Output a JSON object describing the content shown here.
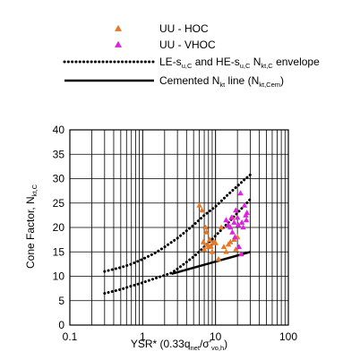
{
  "chart_data": {
    "type": "scatter",
    "xscale": "log",
    "xlim": [
      0.1,
      100
    ],
    "ylim": [
      0,
      40
    ],
    "grid": true,
    "legend_placement": "top",
    "xlabel": {
      "pre": "YSR* (0.33q",
      "sub1": "net",
      "mid": "/σ'",
      "sub2": "vo,h",
      "post": ")"
    },
    "ylabel": {
      "pre": "Cone Factor, N",
      "sub": "kt,C"
    },
    "x_ticks": [
      {
        "value": 0.1,
        "label": "0.1"
      },
      {
        "value": 1,
        "label": "1"
      },
      {
        "value": 10,
        "label": "10"
      },
      {
        "value": 100,
        "label": "100"
      }
    ],
    "y_ticks": [
      {
        "value": 0,
        "label": "0"
      },
      {
        "value": 5,
        "label": "5"
      },
      {
        "value": 10,
        "label": "10"
      },
      {
        "value": 15,
        "label": "15"
      },
      {
        "value": 20,
        "label": "20"
      },
      {
        "value": 25,
        "label": "25"
      },
      {
        "value": 30,
        "label": "30"
      },
      {
        "value": 35,
        "label": "35"
      },
      {
        "value": 40,
        "label": "40"
      }
    ],
    "legend": [
      {
        "label": "UU - HOC",
        "color": "#e87722",
        "marker": "triangle"
      },
      {
        "label": "UU - VHOC",
        "color": "#e020e0",
        "marker": "triangle"
      },
      {
        "pre": "LE-s",
        "s1": "u,C",
        "mid": " and HE-s",
        "s2": "u,C",
        "mid2": " N",
        "s3": "kt,C",
        "post": " envelope",
        "style": "dotted"
      },
      {
        "pre": "Cemented N",
        "s1": "kt",
        "mid": " line (N",
        "s2": "kt,Cem",
        "post": ")",
        "style": "solid"
      }
    ],
    "series": [
      {
        "name": "UU - HOC",
        "color": "#e87722",
        "points": [
          [
            6.0,
            24.5
          ],
          [
            6.5,
            23.5
          ],
          [
            6.8,
            17.0
          ],
          [
            7.0,
            15.5
          ],
          [
            7.3,
            20.0
          ],
          [
            7.5,
            19.0
          ],
          [
            7.8,
            16.5
          ],
          [
            8.0,
            16.0
          ],
          [
            8.3,
            17.5
          ],
          [
            8.6,
            16.2
          ],
          [
            9.0,
            15.0
          ],
          [
            9.5,
            17.0
          ],
          [
            10.0,
            16.8
          ],
          [
            11.0,
            13.5
          ],
          [
            12.0,
            20.0
          ],
          [
            13.0,
            16.0
          ],
          [
            14.0,
            15.0
          ],
          [
            15.0,
            16.5
          ],
          [
            16.0,
            17.0
          ],
          [
            17.0,
            22.0
          ],
          [
            18.0,
            17.5
          ],
          [
            19.0,
            15.5
          ],
          [
            20.0,
            18.0
          ]
        ]
      },
      {
        "name": "UU - VHOC",
        "color": "#e020e0",
        "points": [
          [
            14.0,
            21.5
          ],
          [
            15.0,
            20.5
          ],
          [
            16.0,
            20.0
          ],
          [
            16.5,
            22.0
          ],
          [
            17.0,
            19.0
          ],
          [
            18.0,
            21.0
          ],
          [
            18.5,
            18.0
          ],
          [
            19.0,
            23.5
          ],
          [
            20.0,
            22.0
          ],
          [
            20.5,
            20.5
          ],
          [
            21.0,
            16.0
          ],
          [
            22.0,
            27.0
          ],
          [
            22.5,
            14.5
          ],
          [
            23.0,
            21.0
          ],
          [
            24.0,
            20.0
          ],
          [
            25.0,
            24.5
          ],
          [
            26.0,
            22.5
          ],
          [
            26.5,
            21.5
          ],
          [
            27.0,
            23.0
          ]
        ]
      }
    ],
    "envelope_upper": [
      [
        0.3,
        11.0
      ],
      [
        0.5,
        11.8
      ],
      [
        0.7,
        12.5
      ],
      [
        1.0,
        13.5
      ],
      [
        1.5,
        14.8
      ],
      [
        2.0,
        16.0
      ],
      [
        3.0,
        17.8
      ],
      [
        5.0,
        20.5
      ],
      [
        7.0,
        22.5
      ],
      [
        10.0,
        24.3
      ],
      [
        15.0,
        26.8
      ],
      [
        20.0,
        28.5
      ],
      [
        25.0,
        29.8
      ],
      [
        30.0,
        30.8
      ]
    ],
    "envelope_lower": [
      [
        0.3,
        6.5
      ],
      [
        0.5,
        7.3
      ],
      [
        0.7,
        8.0
      ],
      [
        1.0,
        8.7
      ],
      [
        1.5,
        9.6
      ],
      [
        2.0,
        10.2
      ],
      [
        2.5,
        10.7
      ],
      [
        3.0,
        11.5
      ],
      [
        5.0,
        14.0
      ],
      [
        7.0,
        16.0
      ],
      [
        10.0,
        18.3
      ],
      [
        15.0,
        21.0
      ],
      [
        20.0,
        23.0
      ],
      [
        25.0,
        24.5
      ],
      [
        30.0,
        25.8
      ]
    ],
    "cemented_line": [
      [
        2.5,
        10.5
      ],
      [
        30.0,
        15.0
      ]
    ]
  }
}
